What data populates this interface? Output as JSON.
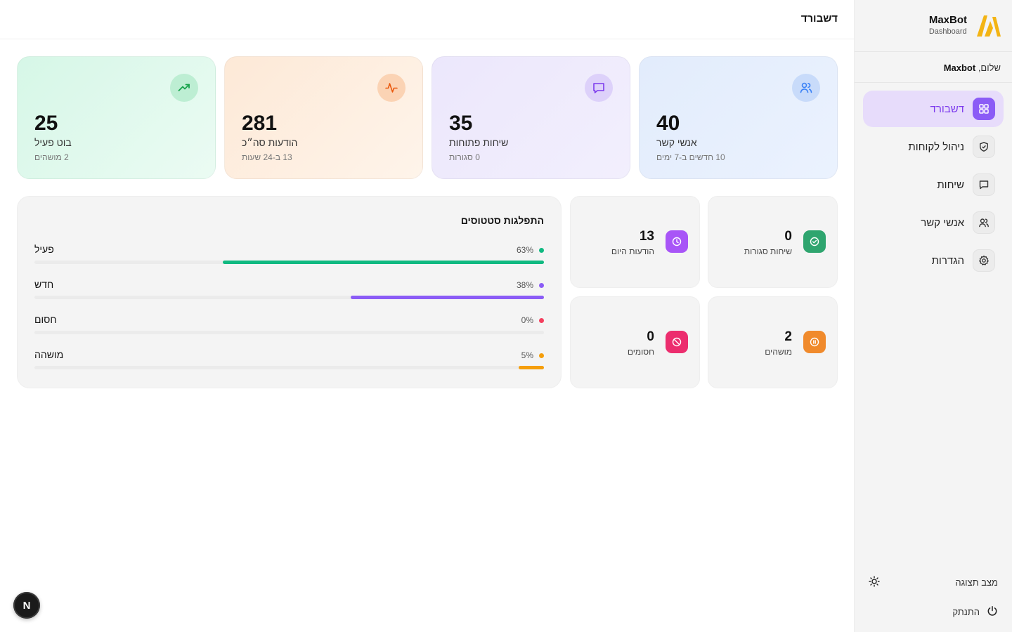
{
  "brand": {
    "name": "MaxBot",
    "subtitle": "Dashboard"
  },
  "greeting": {
    "prefix": "שלום,",
    "name": "Maxbot"
  },
  "nav": [
    {
      "label": "דשבורד",
      "icon": "grid-icon",
      "active": true
    },
    {
      "label": "ניהול לקוחות",
      "icon": "shield-icon",
      "active": false
    },
    {
      "label": "שיחות",
      "icon": "chat-icon",
      "active": false
    },
    {
      "label": "אנשי קשר",
      "icon": "users-icon",
      "active": false
    },
    {
      "label": "הגדרות",
      "icon": "gear-icon",
      "active": false
    }
  ],
  "sidebar_bottom": {
    "theme_label": "מצב תצוגה",
    "logout_label": "התנתק"
  },
  "header": {
    "title": "דשבורד"
  },
  "stats": {
    "contacts": {
      "value": "40",
      "label": "אנשי קשר",
      "sub": "10 חדשים ב-7 ימים",
      "icon": "users-icon",
      "color": "#3b82f6"
    },
    "conversations": {
      "value": "35",
      "label": "שיחות פתוחות",
      "sub": "0 סגורות",
      "icon": "chat-icon",
      "color": "#7c3aed"
    },
    "messages": {
      "value": "281",
      "label": "הודעות סה״כ",
      "sub": "13 ב-24 שעות",
      "icon": "activity-icon",
      "color": "#ea580c"
    },
    "bot": {
      "value": "25",
      "label": "בוט פעיל",
      "sub": "2 מושהים",
      "icon": "trending-up-icon",
      "color": "#16a34a"
    }
  },
  "mini": {
    "closed": {
      "value": "0",
      "label": "שיחות סגורות",
      "icon": "check-circle-icon"
    },
    "today": {
      "value": "13",
      "label": "הודעות היום",
      "icon": "clock-icon"
    },
    "paused": {
      "value": "2",
      "label": "מושהים",
      "icon": "pause-circle-icon"
    },
    "blocked": {
      "value": "0",
      "label": "חסומים",
      "icon": "ban-icon"
    }
  },
  "distribution": {
    "title": "התפלגות סטטוסים",
    "rows": [
      {
        "label": "פעיל",
        "percent": "63%",
        "fraction": 0.63,
        "color": "#10b981"
      },
      {
        "label": "חדש",
        "percent": "38%",
        "fraction": 0.38,
        "color": "#8b5cf6"
      },
      {
        "label": "חסום",
        "percent": "0%",
        "fraction": 0.0,
        "color": "#f43f5e"
      },
      {
        "label": "מושהה",
        "percent": "5%",
        "fraction": 0.05,
        "color": "#f59e0b"
      }
    ]
  },
  "badge": {
    "letter": "N"
  }
}
